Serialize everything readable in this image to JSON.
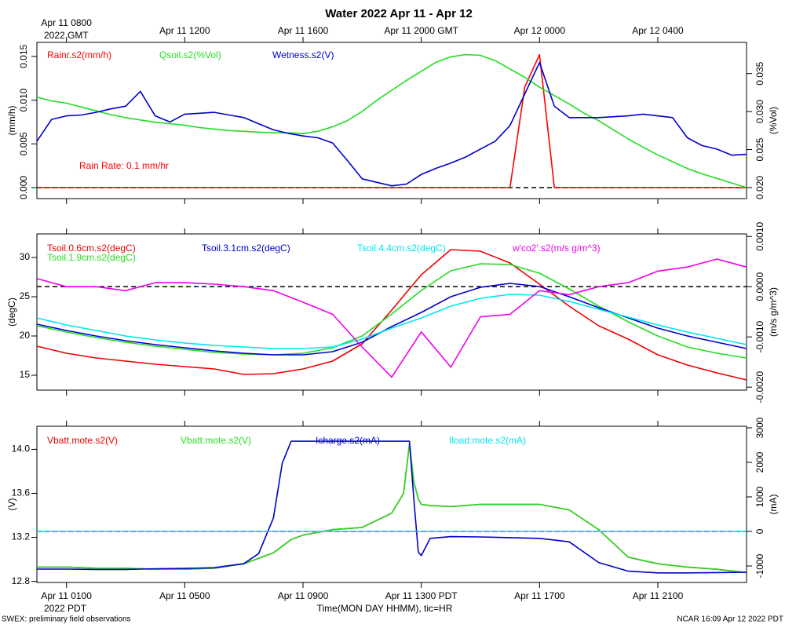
{
  "title": "Water 2022 Apr 11 - Apr 12",
  "time_axis": {
    "label": "Time(MON DAY HHMM), tic=HR",
    "pdt_year": "2022 PDT",
    "gmt_year": "2022 GMT",
    "xticks": [
      {
        "value": 1,
        "label": "Apr 11 0100"
      },
      {
        "value": 5,
        "label": "Apr 11 0500"
      },
      {
        "value": 9,
        "label": "Apr 11 0900"
      },
      {
        "value": 13,
        "label": "Apr 11 1300 PDT"
      },
      {
        "value": 17,
        "label": "Apr 11 1700"
      },
      {
        "value": 21,
        "label": "Apr 11 2100"
      }
    ],
    "gmt_xticks": [
      {
        "value": 1,
        "label": "Apr 11 0800"
      },
      {
        "value": 5,
        "label": "Apr 11 1200"
      },
      {
        "value": 9,
        "label": "Apr 11 1600"
      },
      {
        "value": 13,
        "label": "Apr 11 2000 GMT"
      },
      {
        "value": 17,
        "label": "Apr 12 0000"
      },
      {
        "value": 21,
        "label": "Apr 12 0400"
      }
    ]
  },
  "footer_left": "SWEX: preliminary field observations",
  "footer_right": "NCAR 16:09 Apr 12 2022 PDT",
  "chart_data": [
    {
      "type": "line",
      "ylabel": "(mm/h)",
      "y2label": "(%Vol)",
      "annotation": "Rain Rate: 0.1 mm/hr",
      "ref_line": {
        "axis": "y",
        "value": 0
      },
      "xlim": [
        0,
        24
      ],
      "ylim": [
        -0.00126,
        0.0166
      ],
      "y2lim": [
        0.01855,
        0.0391
      ],
      "yticks": [
        {
          "value": 0,
          "label": "0.000"
        },
        {
          "value": 0.005,
          "label": "0.005"
        },
        {
          "value": 0.01,
          "label": "0.010"
        },
        {
          "value": 0.015,
          "label": "0.015"
        }
      ],
      "y2ticks": [
        {
          "value": 0.02,
          "label": "0.020"
        },
        {
          "value": 0.025,
          "label": "0.025"
        },
        {
          "value": 0.03,
          "label": "0.030"
        },
        {
          "value": 0.035,
          "label": "0.035"
        }
      ],
      "x": [
        0,
        0.5,
        1,
        1.5,
        2,
        2.5,
        3,
        3.5,
        4,
        4.5,
        5,
        5.5,
        6,
        6.5,
        7,
        7.5,
        8,
        8.5,
        9,
        9.5,
        10,
        10.5,
        11,
        11.5,
        12,
        12.5,
        13,
        13.5,
        14,
        14.5,
        15,
        15.5,
        16,
        16.5,
        17,
        17.5,
        18,
        18.5,
        19,
        19.5,
        20,
        20.5,
        21,
        21.5,
        22,
        22.5,
        23,
        23.5,
        24
      ],
      "series": [
        {
          "name": "Rainr.s2(mm/h)",
          "color": "#ff0000",
          "axis": "y",
          "values": [
            0,
            0,
            0,
            0,
            0,
            0,
            0,
            0,
            0,
            0,
            0,
            0,
            0,
            0,
            0,
            0,
            0,
            0,
            0,
            0,
            0,
            0,
            0,
            0,
            0,
            0,
            0,
            0,
            0,
            0,
            0,
            0,
            0,
            0.0115,
            0.0152,
            0,
            0,
            0,
            0,
            0,
            0,
            0,
            0,
            0,
            0,
            0,
            0,
            0,
            0
          ]
        },
        {
          "name": "Qsoil.s2(%Vol)",
          "color": "#22dd22",
          "axis": "y2",
          "values": [
            0.0319,
            0.0314,
            0.0311,
            0.0306,
            0.0301,
            0.0296,
            0.0292,
            0.0289,
            0.0286,
            0.0284,
            0.0282,
            0.0279,
            0.0277,
            0.0275,
            0.0274,
            0.0273,
            0.0272,
            0.0272,
            0.0271,
            0.0274,
            0.028,
            0.0288,
            0.03,
            0.0315,
            0.0328,
            0.0341,
            0.0353,
            0.0365,
            0.0372,
            0.0375,
            0.0374,
            0.0367,
            0.0356,
            0.0345,
            0.0332,
            0.0321,
            0.031,
            0.0298,
            0.0288,
            0.0276,
            0.0264,
            0.0253,
            0.0243,
            0.0234,
            0.0225,
            0.0218,
            0.0212,
            0.0206,
            0.02
          ]
        },
        {
          "name": "Wetness.s2(V)",
          "color": "#0000cc",
          "axis": "y",
          "values": [
            0.0053,
            0.0078,
            0.0082,
            0.0083,
            0.0086,
            0.009,
            0.0093,
            0.011,
            0.0082,
            0.0075,
            0.0084,
            0.0085,
            0.0086,
            0.0083,
            0.008,
            0.0073,
            0.0066,
            0.0062,
            0.0059,
            0.0057,
            0.0051,
            0.0031,
            0.001,
            0.0006,
            0.0002,
            0.0004,
            0.0015,
            0.0022,
            0.0028,
            0.0035,
            0.0044,
            0.0053,
            0.0071,
            0.0107,
            0.0143,
            0.0093,
            0.008,
            0.008,
            0.008,
            0.0081,
            0.0082,
            0.0084,
            0.0082,
            0.008,
            0.0057,
            0.0048,
            0.0044,
            0.0037,
            0.0038
          ]
        }
      ]
    },
    {
      "type": "line",
      "ylabel": "(degC)",
      "y2label": "(m/s g/m^3)",
      "ref_line": {
        "axis": "y2",
        "value": 0
      },
      "xlim": [
        0,
        24
      ],
      "ylim": [
        13.1,
        33
      ],
      "y2lim": [
        -0.00206,
        0.00105
      ],
      "yticks": [
        15,
        20,
        25,
        30
      ],
      "y2ticks": [
        {
          "value": -0.002,
          "label": "-0.0020"
        },
        {
          "value": -0.001,
          "label": "-0.0010"
        },
        {
          "value": 0,
          "label": "0.0000"
        },
        {
          "value": 0.001,
          "label": "0.0010"
        }
      ],
      "x": [
        0,
        1,
        2,
        3,
        4,
        5,
        6,
        7,
        8,
        9,
        10,
        11,
        12,
        13,
        14,
        15,
        16,
        17,
        18,
        19,
        20,
        21,
        22,
        23,
        24
      ],
      "series": [
        {
          "name": "Tsoil.0.6cm.s2(degC)",
          "color": "#ee0000",
          "axis": "y",
          "values": [
            18.7,
            17.8,
            17.2,
            16.8,
            16.4,
            16.1,
            15.8,
            15.1,
            15.2,
            15.8,
            16.8,
            19.0,
            23.3,
            27.8,
            31.0,
            30.8,
            29.3,
            26.6,
            23.8,
            21.3,
            19.6,
            17.6,
            16.3,
            15.3,
            14.4
          ]
        },
        {
          "name": "Tsoil.1.9cm.s2(degC)",
          "color": "#22dd22",
          "axis": "y",
          "values": [
            21.3,
            20.5,
            19.8,
            19.2,
            18.7,
            18.3,
            17.9,
            17.7,
            17.6,
            17.8,
            18.5,
            20.0,
            22.8,
            25.8,
            28.3,
            29.2,
            29.1,
            28.0,
            26.0,
            23.8,
            21.8,
            20.0,
            18.6,
            17.8,
            17.2
          ]
        },
        {
          "name": "Tsoil.3.1cm.s2(degC)",
          "color": "#0000cc",
          "axis": "y",
          "values": [
            21.5,
            20.7,
            20.0,
            19.4,
            18.9,
            18.5,
            18.1,
            17.8,
            17.6,
            17.6,
            18.0,
            19.2,
            21.2,
            23.0,
            25.0,
            26.2,
            26.7,
            26.3,
            25.0,
            23.6,
            22.3,
            21.0,
            20.0,
            19.2,
            18.4
          ]
        },
        {
          "name": "Tsoil.4.4cm.s2(degC)",
          "color": "#00e5ee",
          "axis": "y",
          "values": [
            22.3,
            21.4,
            20.7,
            20.0,
            19.5,
            19.1,
            18.8,
            18.6,
            18.4,
            18.4,
            18.6,
            19.6,
            21.0,
            22.3,
            23.8,
            24.8,
            25.3,
            25.2,
            24.4,
            23.4,
            22.4,
            21.4,
            20.5,
            19.7,
            18.9
          ]
        },
        {
          "name": "w'co2'.s2(m/s g/m^3)",
          "color": "#ee00ee",
          "axis": "y2",
          "values": [
            0.00016,
            0,
            0,
            -8e-05,
            8e-05,
            8e-05,
            5e-05,
            0,
            -8e-05,
            -0.00031,
            -0.00055,
            -0.0012,
            -0.0018,
            -0.0009,
            -0.0016,
            -0.0006,
            -0.00055,
            -8e-05,
            -0.00016,
            0,
            8e-05,
            0.00031,
            0.00039,
            0.00055,
            0.00039
          ]
        }
      ]
    },
    {
      "type": "line",
      "ylabel": "(V)",
      "y2label": "(mA)",
      "ref_line": {
        "axis": "y2",
        "value": 0
      },
      "xlim": [
        0,
        24
      ],
      "ylim": [
        12.79,
        14.21
      ],
      "y2lim": [
        -1477,
        3045
      ],
      "yticks": [
        12.8,
        13.2,
        13.6,
        {
          "value": 14,
          "label": "14.0"
        }
      ],
      "y2ticks": [
        -1000,
        0,
        1000,
        2000,
        3000
      ],
      "x": [
        0,
        1,
        2,
        3,
        4,
        5,
        6,
        7,
        7.5,
        8,
        8.3,
        8.6,
        9,
        10,
        11,
        12,
        12.4,
        12.6,
        12.75,
        12.9,
        13,
        13.3,
        14,
        15,
        16,
        17,
        18,
        19,
        20,
        21,
        22,
        23,
        24
      ],
      "series": [
        {
          "name": "Vbatt.mote.s2(V)",
          "color": "#ee0000",
          "axis": "y",
          "values": [
            12.93,
            12.93,
            12.92,
            12.92,
            12.91,
            12.91,
            12.92,
            12.96,
            13.01,
            13.06,
            13.12,
            13.18,
            13.22,
            13.27,
            13.29,
            13.42,
            13.6,
            14.05,
            13.7,
            13.55,
            13.5,
            13.49,
            13.48,
            13.5,
            13.5,
            13.5,
            13.45,
            13.27,
            13.02,
            12.96,
            12.93,
            12.91,
            12.88
          ]
        },
        {
          "name": "Vbatt.mote.s2(V)",
          "color": "#22dd22",
          "axis": "y",
          "values": [
            12.93,
            12.93,
            12.92,
            12.92,
            12.91,
            12.91,
            12.92,
            12.96,
            13.01,
            13.06,
            13.12,
            13.18,
            13.22,
            13.27,
            13.29,
            13.42,
            13.6,
            14.05,
            13.7,
            13.55,
            13.5,
            13.49,
            13.48,
            13.5,
            13.5,
            13.5,
            13.45,
            13.27,
            13.02,
            12.96,
            12.93,
            12.91,
            12.88
          ]
        },
        {
          "name": "Icharge.s2(mA)",
          "color": "#0000cc",
          "axis": "y2",
          "values": [
            -1090,
            -1090,
            -1100,
            -1100,
            -1080,
            -1070,
            -1050,
            -930,
            -640,
            390,
            1980,
            2610,
            2610,
            2610,
            2610,
            2610,
            2610,
            2610,
            900,
            -600,
            -700,
            -200,
            -150,
            -160,
            -180,
            -200,
            -300,
            -900,
            -1150,
            -1200,
            -1200,
            -1190,
            -1180
          ]
        },
        {
          "name": "Iload.mote.s2(mA)",
          "color": "#00e5ee",
          "axis": "y2",
          "values": [
            0,
            0,
            0,
            0,
            0,
            0,
            0,
            0,
            0,
            0,
            0,
            0,
            0,
            0,
            0,
            0,
            0,
            0,
            0,
            0,
            0,
            0,
            0,
            0,
            0,
            0,
            0,
            0,
            0,
            0,
            0,
            0,
            0
          ]
        }
      ]
    }
  ]
}
